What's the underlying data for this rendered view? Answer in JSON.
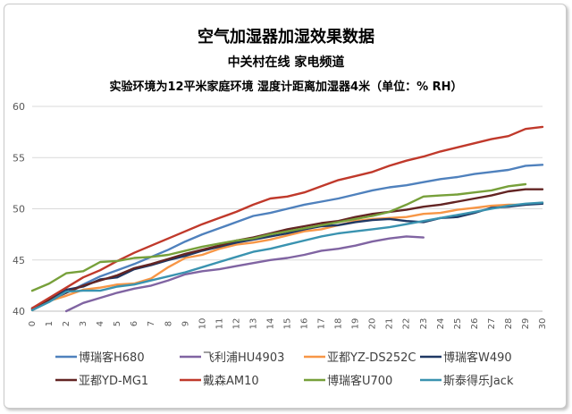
{
  "chart_data": {
    "type": "line",
    "title": "空气加湿器加湿效果数据",
    "subtitle": "中关村在线 家电频道",
    "subtitle2": "实验环境为12平米家庭环境 湿度计距离加湿器4米（单位：% RH）",
    "x": [
      "0",
      "1",
      "2",
      "3",
      "4",
      "5",
      "6",
      "7",
      "8",
      "9",
      "10",
      "11",
      "12",
      "13",
      "14",
      "15",
      "16",
      "17",
      "18",
      "19",
      "20",
      "21",
      "22",
      "23",
      "24",
      "25",
      "26",
      "27",
      "28",
      "29",
      "30"
    ],
    "y_ticks": [
      "40",
      "45",
      "50",
      "55",
      "60"
    ],
    "ylim": [
      40,
      60
    ],
    "grid": true,
    "legend_position": "bottom",
    "series": [
      {
        "name": "博瑞客H680",
        "color": "#4f81bd",
        "values": [
          40.1,
          41.0,
          41.8,
          42.6,
          43.4,
          44.0,
          44.6,
          45.3,
          46.0,
          46.8,
          47.5,
          48.1,
          48.7,
          49.3,
          49.6,
          50.0,
          50.4,
          50.7,
          51.0,
          51.4,
          51.8,
          52.1,
          52.3,
          52.6,
          52.9,
          53.1,
          53.4,
          53.6,
          53.8,
          54.2,
          54.3
        ]
      },
      {
        "name": "飞利浦HU4903",
        "color": "#8064a2",
        "values": [
          null,
          null,
          40.0,
          40.8,
          41.3,
          41.8,
          42.2,
          42.5,
          43.0,
          43.6,
          43.9,
          44.1,
          44.4,
          44.7,
          45.0,
          45.2,
          45.5,
          45.9,
          46.1,
          46.4,
          46.8,
          47.1,
          47.3,
          47.2,
          null,
          null,
          null,
          null,
          null,
          null,
          null
        ]
      },
      {
        "name": "亚都YZ-DS252C",
        "color": "#f79646",
        "values": [
          40.1,
          41.0,
          41.5,
          42.1,
          42.3,
          42.6,
          42.7,
          43.2,
          44.3,
          45.2,
          45.5,
          46.1,
          46.5,
          46.7,
          47.0,
          47.4,
          47.8,
          48.0,
          48.4,
          48.8,
          49.0,
          49.1,
          49.2,
          49.5,
          49.6,
          49.9,
          50.1,
          50.3,
          50.4,
          50.4,
          50.6
        ]
      },
      {
        "name": "博瑞客W490",
        "color": "#1f3864",
        "values": [
          40.3,
          41.1,
          42.1,
          42.4,
          43.1,
          43.3,
          44.1,
          44.5,
          45.0,
          45.4,
          45.9,
          46.3,
          46.7,
          47.0,
          47.3,
          47.6,
          48.0,
          48.3,
          48.4,
          48.7,
          48.9,
          49.0,
          48.8,
          48.7,
          49.1,
          49.2,
          49.6,
          50.1,
          50.2,
          50.4,
          50.5
        ]
      },
      {
        "name": "亚都YD-MG1",
        "color": "#632423",
        "values": [
          40.2,
          41.1,
          41.8,
          42.5,
          43.0,
          43.5,
          44.2,
          44.6,
          45.1,
          45.6,
          46.0,
          46.4,
          46.9,
          47.2,
          47.6,
          48.0,
          48.3,
          48.6,
          48.8,
          49.2,
          49.5,
          49.7,
          49.9,
          50.2,
          50.4,
          50.7,
          51.0,
          51.3,
          51.7,
          51.9,
          51.9
        ]
      },
      {
        "name": "戴森AM10",
        "color": "#c0392b",
        "values": [
          40.3,
          41.3,
          42.3,
          43.3,
          44.0,
          44.9,
          45.7,
          46.4,
          47.1,
          47.8,
          48.5,
          49.1,
          49.7,
          50.4,
          51.0,
          51.2,
          51.6,
          52.2,
          52.8,
          53.2,
          53.6,
          54.2,
          54.7,
          55.1,
          55.6,
          56.0,
          56.4,
          56.8,
          57.1,
          57.8,
          58.0
        ]
      },
      {
        "name": "博瑞客U700",
        "color": "#77a03a",
        "values": [
          42.0,
          42.7,
          43.7,
          43.9,
          44.8,
          44.9,
          45.2,
          45.3,
          45.5,
          45.9,
          46.3,
          46.6,
          46.9,
          47.1,
          47.5,
          47.8,
          48.1,
          48.4,
          48.7,
          49.0,
          49.3,
          49.7,
          50.4,
          51.2,
          51.3,
          51.4,
          51.6,
          51.8,
          52.2,
          52.4,
          null
        ]
      },
      {
        "name": "斯泰得乐Jack",
        "color": "#3a93b0",
        "values": [
          40.1,
          40.9,
          41.9,
          42.0,
          42.0,
          42.4,
          42.6,
          43.0,
          43.4,
          43.8,
          44.3,
          44.8,
          45.3,
          45.8,
          46.1,
          46.5,
          46.9,
          47.3,
          47.6,
          47.8,
          48.0,
          48.2,
          48.5,
          48.8,
          49.1,
          49.4,
          49.7,
          50.0,
          50.3,
          50.5,
          50.6
        ]
      }
    ]
  }
}
